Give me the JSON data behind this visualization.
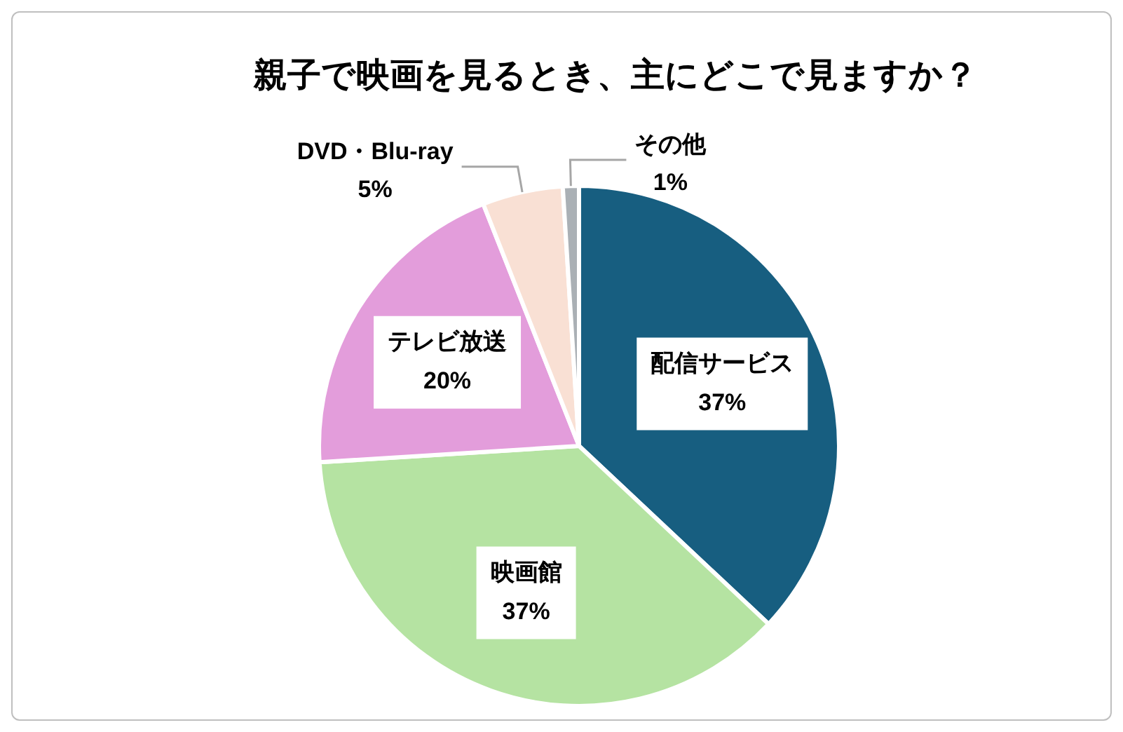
{
  "chart_data": {
    "type": "pie",
    "title": "親子で映画を見るとき、主にどこで見ますか？",
    "categories": [
      "配信サービス",
      "映画館",
      "テレビ放送",
      "DVD・Blu-ray",
      "その他"
    ],
    "values": [
      37,
      37,
      20,
      5,
      1
    ],
    "value_labels": [
      "37%",
      "37%",
      "20%",
      "5%",
      "1%"
    ],
    "colors": [
      "#175e80",
      "#b5e3a2",
      "#e39ddb",
      "#f9e0d4",
      "#aab0b5"
    ],
    "legend": false
  }
}
